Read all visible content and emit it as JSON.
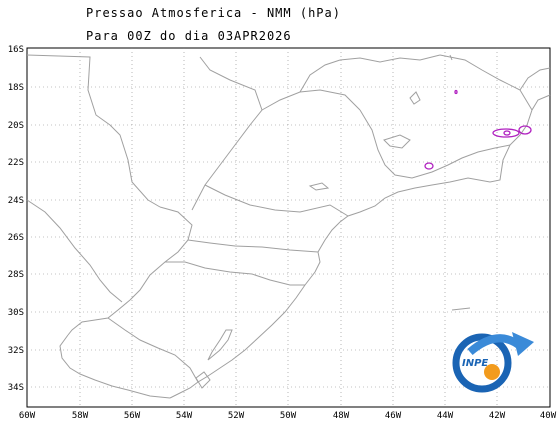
{
  "header": {
    "title": "Pressao Atmosferica - NMM (hPa)",
    "subtitle": "Para 00Z do dia 03APR2026"
  },
  "map": {
    "lon_range": [
      -60,
      -40
    ],
    "lat_range": [
      -35,
      -16
    ],
    "lat_ticks": [
      "16S",
      "18S",
      "20S",
      "22S",
      "24S",
      "26S",
      "28S",
      "30S",
      "32S",
      "34S"
    ],
    "lon_ticks": [
      "60W",
      "58W",
      "56W",
      "54W",
      "52W",
      "50W",
      "48W",
      "46W",
      "44W",
      "42W",
      "40W"
    ],
    "grid": "dotted",
    "contour_color": "#b020c0",
    "boundary_color": "#a0a0a0"
  },
  "logo": {
    "text": "INPE",
    "colors": {
      "ring": "#1a64b4",
      "arrow": "#3a8ad8",
      "sun": "#f29b1d"
    }
  }
}
